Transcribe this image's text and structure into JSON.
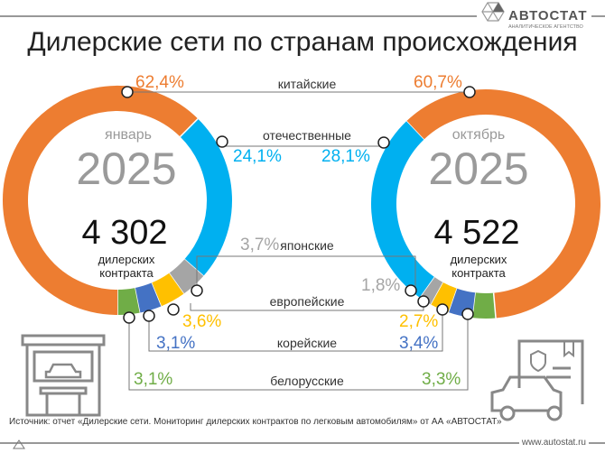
{
  "logo": {
    "name": "АВТОСТАТ",
    "tagline": "АНАЛИТИЧЕСКОЕ АГЕНТСТВО"
  },
  "title": "Дилерские сети по странам происхождения",
  "categories_labels": {
    "chinese": "китайские",
    "domestic": "отечественные",
    "japanese": "японские",
    "european": "европейские",
    "korean": "корейские",
    "belarusian": "белорусские"
  },
  "left": {
    "month": "январь",
    "year": "2025",
    "count": "4 302",
    "unit_line1": "дилерских",
    "unit_line2": "контракта",
    "labels": {
      "chinese": "62,4%",
      "domestic": "24,1%",
      "japanese": "3,7%",
      "european": "3,6%",
      "korean": "3,1%",
      "belarusian": "3,1%"
    }
  },
  "right": {
    "month": "октябрь",
    "year": "2025",
    "count": "4 522",
    "unit_line1": "дилерских",
    "unit_line2": "контракта",
    "labels": {
      "chinese": "60,7%",
      "domestic": "28,1%",
      "japanese": "1,8%",
      "european": "2,7%",
      "korean": "3,4%",
      "belarusian": "3,3%"
    }
  },
  "colors": {
    "chinese": "#ED7D31",
    "domestic": "#00B0F0",
    "japanese": "#A5A5A5",
    "european": "#FFC000",
    "korean": "#4472C4",
    "belarusian": "#70AD47"
  },
  "chart_data": [
    {
      "type": "pie",
      "categories": [
        "китайские",
        "отечественные",
        "японские",
        "европейские",
        "корейские",
        "белорусские"
      ],
      "values": [
        62.4,
        24.1,
        3.7,
        3.6,
        3.1,
        3.1
      ]
    },
    {
      "type": "pie",
      "categories": [
        "китайские",
        "отечественные",
        "японские",
        "европейские",
        "корейские",
        "белорусские"
      ],
      "values": [
        60.7,
        28.1,
        1.8,
        2.7,
        3.4,
        3.3
      ]
    }
  ],
  "footer": {
    "source": "Источник: отчет «Дилерские сети. Мониторинг дилерских контрактов по легковым автомобилям» от АА «АВТОСТАТ»",
    "url": "www.autostat.ru"
  }
}
